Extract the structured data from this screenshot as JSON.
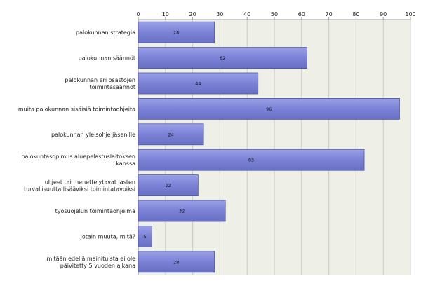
{
  "chart_data": {
    "type": "bar",
    "orientation": "horizontal",
    "categories": [
      [
        "palokunnan strategia"
      ],
      [
        "palokunnan säännöt"
      ],
      [
        "palokunnan eri osastojen",
        "toimintasäännöt"
      ],
      [
        "muita palokunnan sisäisiä toimintaohjeita"
      ],
      [
        "palokunnan yleisohje jäsenille"
      ],
      [
        "palokuntasopimus aluepelastuslaitoksen",
        "kanssa"
      ],
      [
        "ohjeet tai menettelytavat lasten",
        "turvallisuutta lisääviksi toimintatavoiksi"
      ],
      [
        "työsuojelun toimintaohjelma"
      ],
      [
        "jotain muuta, mitä?"
      ],
      [
        "mitään edellä mainituista ei ole",
        "päivitetty 5 vuoden aikana"
      ]
    ],
    "values": [
      28,
      62,
      44,
      96,
      24,
      83,
      22,
      32,
      5,
      28
    ],
    "xlim": [
      0,
      100
    ],
    "xticks": [
      0,
      10,
      20,
      30,
      40,
      50,
      60,
      70,
      80,
      90,
      100
    ],
    "grid": true,
    "legend": "none",
    "colors": {
      "bar_fill": "#7b82d6",
      "bar_stroke": "#4e56a8",
      "plot_bg": "#eef0e8",
      "grid": "#c9ccc0",
      "axis": "#999999"
    }
  }
}
